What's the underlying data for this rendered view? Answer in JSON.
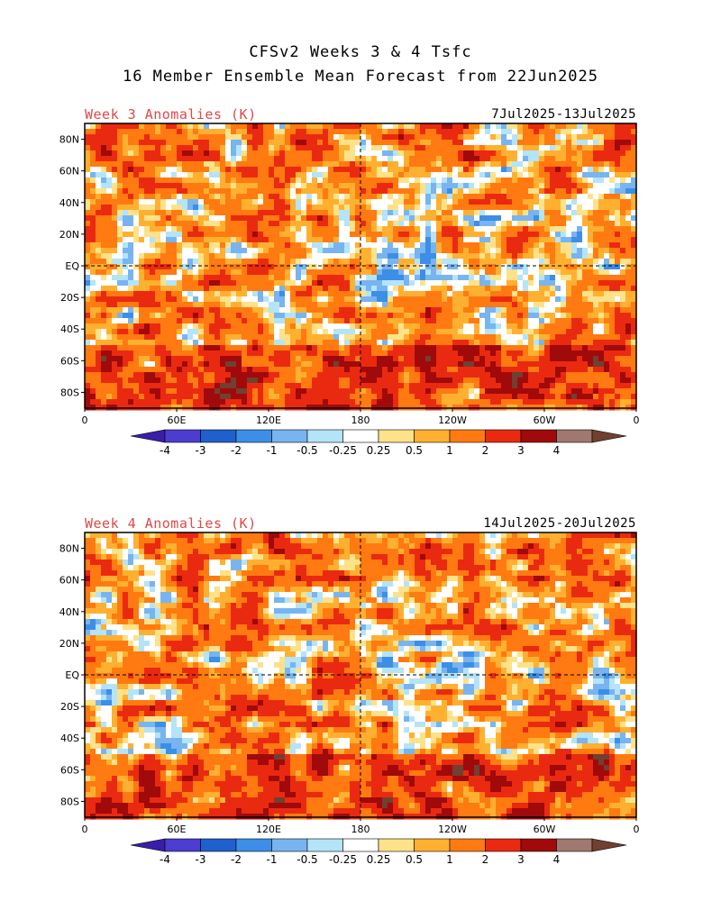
{
  "title": {
    "line1": "CFSv2 Weeks 3 & 4 Tsfc",
    "line2": "16 Member Ensemble Mean Forecast from 22Jun2025"
  },
  "panels": [
    {
      "label": "Week 3 Anomalies (K)",
      "dates": "7Jul2025-13Jul2025"
    },
    {
      "label": "Week 4 Anomalies (K)",
      "dates": "14Jul2025-20Jul2025"
    }
  ],
  "axes": {
    "lat_labels": [
      "80N",
      "60N",
      "40N",
      "20N",
      "EQ",
      "20S",
      "40S",
      "60S",
      "80S"
    ],
    "lat_values": [
      80,
      60,
      40,
      20,
      0,
      -20,
      -40,
      -60,
      -80
    ],
    "lon_labels": [
      "0",
      "60E",
      "120E",
      "180",
      "120W",
      "60W",
      "0"
    ],
    "lon_values": [
      0,
      60,
      120,
      180,
      240,
      300,
      360
    ],
    "lat_range": [
      -90,
      90
    ],
    "lon_range": [
      0,
      360
    ]
  },
  "colorbar": {
    "tick_labels": [
      "-4",
      "-3",
      "-2",
      "-1",
      "-0.5",
      "-0.25",
      "0.25",
      "0.5",
      "1",
      "2",
      "3",
      "4"
    ],
    "colors": [
      "#3a1ea8",
      "#4c3cd0",
      "#2060cc",
      "#3c8ee6",
      "#78b4f0",
      "#b4e4f8",
      "#ffffff",
      "#fde28a",
      "#ffb030",
      "#ff7a10",
      "#ea2a10",
      "#a00a0a",
      "#a07870",
      "#704030"
    ]
  }
}
